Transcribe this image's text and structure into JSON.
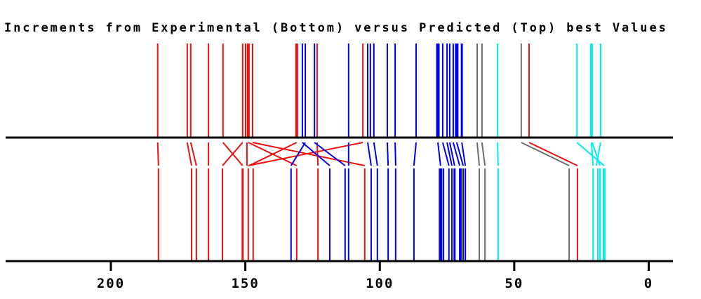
{
  "title": "Increments from Experimental (Bottom) versus Predicted (Top) best Values",
  "colors": {
    "red": "#ee1111",
    "blue": "#0000ee",
    "gray": "#6e6e6e",
    "cyan": "#00eeee",
    "axis": "#000000"
  },
  "chart_data": {
    "type": "line",
    "subtype": "stick-spectrum-comparison",
    "title": "Increments from Experimental (Bottom) versus Predicted (Top) best Values",
    "xlabel": "",
    "ylabel": "",
    "x_axis": {
      "ticks": [
        200,
        150,
        100,
        50,
        0
      ],
      "tick_labels": [
        "200",
        "150",
        "100",
        "50",
        "0"
      ],
      "xlim": [
        239.2,
        -9.8
      ],
      "reversed": true,
      "grid": false
    },
    "top_spectrum": {
      "name": "Predicted (Top) best values",
      "lines": [
        {
          "v": 182.6,
          "c": "red",
          "w": 2
        },
        {
          "v": 171.6,
          "c": "red",
          "w": 2
        },
        {
          "v": 170.3,
          "c": "red",
          "w": 2
        },
        {
          "v": 163.7,
          "c": "red",
          "w": 2
        },
        {
          "v": 158.3,
          "c": "red",
          "w": 2
        },
        {
          "v": 151.0,
          "c": "red",
          "w": 2
        },
        {
          "v": 149.9,
          "c": "red",
          "w": 2
        },
        {
          "v": 148.9,
          "c": "red",
          "w": 4
        },
        {
          "v": 147.3,
          "c": "red",
          "w": 2
        },
        {
          "v": 130.9,
          "c": "red",
          "w": 4
        },
        {
          "v": 128.8,
          "c": "blue",
          "w": 2
        },
        {
          "v": 127.7,
          "c": "blue",
          "w": 2
        },
        {
          "v": 124.3,
          "c": "blue",
          "w": 2
        },
        {
          "v": 123.3,
          "c": "red",
          "w": 2
        },
        {
          "v": 111.6,
          "c": "blue",
          "w": 2
        },
        {
          "v": 106.3,
          "c": "red",
          "w": 2
        },
        {
          "v": 104.5,
          "c": "blue",
          "w": 2
        },
        {
          "v": 103.5,
          "c": "blue",
          "w": 2
        },
        {
          "v": 102.2,
          "c": "blue",
          "w": 2
        },
        {
          "v": 97.2,
          "c": "blue",
          "w": 2
        },
        {
          "v": 94.3,
          "c": "blue",
          "w": 2
        },
        {
          "v": 86.5,
          "c": "blue",
          "w": 2
        },
        {
          "v": 78.4,
          "c": "blue",
          "w": 5
        },
        {
          "v": 76.6,
          "c": "blue",
          "w": 2
        },
        {
          "v": 75.0,
          "c": "blue",
          "w": 2
        },
        {
          "v": 74.0,
          "c": "blue",
          "w": 2
        },
        {
          "v": 72.7,
          "c": "blue",
          "w": 2
        },
        {
          "v": 71.4,
          "c": "blue",
          "w": 5
        },
        {
          "v": 69.5,
          "c": "blue",
          "w": 3
        },
        {
          "v": 63.8,
          "c": "gray",
          "w": 2
        },
        {
          "v": 62.0,
          "c": "gray",
          "w": 2
        },
        {
          "v": 56.2,
          "c": "cyan",
          "w": 2
        },
        {
          "v": 47.4,
          "c": "gray",
          "w": 2
        },
        {
          "v": 44.5,
          "c": "red",
          "w": 2
        },
        {
          "v": 26.7,
          "c": "cyan",
          "w": 2
        },
        {
          "v": 21.3,
          "c": "cyan",
          "w": 4
        },
        {
          "v": 17.9,
          "c": "cyan",
          "w": 2
        }
      ]
    },
    "bottom_spectrum": {
      "name": "Experimental (Bottom) best values",
      "lines": [
        {
          "v": 182.3,
          "c": "red",
          "w": 2
        },
        {
          "v": 170.0,
          "c": "red",
          "w": 2
        },
        {
          "v": 168.2,
          "c": "red",
          "w": 2
        },
        {
          "v": 163.7,
          "c": "red",
          "w": 2
        },
        {
          "v": 158.5,
          "c": "red",
          "w": 2
        },
        {
          "v": 151.0,
          "c": "red",
          "w": 3
        },
        {
          "v": 148.9,
          "c": "red",
          "w": 2
        },
        {
          "v": 147.1,
          "c": "red",
          "w": 2
        },
        {
          "v": 133.0,
          "c": "blue",
          "w": 2
        },
        {
          "v": 130.9,
          "c": "red",
          "w": 2
        },
        {
          "v": 123.0,
          "c": "red",
          "w": 2
        },
        {
          "v": 118.6,
          "c": "blue",
          "w": 2
        },
        {
          "v": 112.9,
          "c": "blue",
          "w": 2
        },
        {
          "v": 111.6,
          "c": "blue",
          "w": 2
        },
        {
          "v": 105.6,
          "c": "red",
          "w": 2
        },
        {
          "v": 103.2,
          "c": "blue",
          "w": 2
        },
        {
          "v": 100.9,
          "c": "blue",
          "w": 2
        },
        {
          "v": 96.9,
          "c": "blue",
          "w": 2
        },
        {
          "v": 94.1,
          "c": "blue",
          "w": 2
        },
        {
          "v": 87.3,
          "c": "blue",
          "w": 2
        },
        {
          "v": 77.4,
          "c": "blue",
          "w": 5
        },
        {
          "v": 76.3,
          "c": "blue",
          "w": 2
        },
        {
          "v": 74.3,
          "c": "blue",
          "w": 2
        },
        {
          "v": 73.2,
          "c": "blue",
          "w": 2
        },
        {
          "v": 72.2,
          "c": "blue",
          "w": 3
        },
        {
          "v": 70.3,
          "c": "blue",
          "w": 2
        },
        {
          "v": 69.8,
          "c": "blue",
          "w": 2
        },
        {
          "v": 69.0,
          "c": "blue",
          "w": 2
        },
        {
          "v": 68.2,
          "c": "blue",
          "w": 2
        },
        {
          "v": 63.0,
          "c": "gray",
          "w": 2
        },
        {
          "v": 60.9,
          "c": "gray",
          "w": 2
        },
        {
          "v": 56.0,
          "c": "cyan",
          "w": 2
        },
        {
          "v": 29.6,
          "c": "gray",
          "w": 2
        },
        {
          "v": 26.5,
          "c": "red",
          "w": 2
        },
        {
          "v": 20.7,
          "c": "cyan",
          "w": 2
        },
        {
          "v": 18.9,
          "c": "cyan",
          "w": 2
        },
        {
          "v": 18.1,
          "c": "cyan",
          "w": 2
        },
        {
          "v": 16.6,
          "c": "cyan",
          "w": 4
        }
      ]
    },
    "connectors": [
      {
        "t": 182.6,
        "b": 182.3,
        "c": "red"
      },
      {
        "t": 171.6,
        "b": 170.0,
        "c": "red"
      },
      {
        "t": 170.3,
        "b": 168.2,
        "c": "red"
      },
      {
        "t": 163.7,
        "b": 163.7,
        "c": "red"
      },
      {
        "t": 158.3,
        "b": 151.0,
        "c": "red"
      },
      {
        "t": 151.0,
        "b": 158.5,
        "c": "red"
      },
      {
        "t": 149.4,
        "b": 149.4,
        "c": "red"
      },
      {
        "t": 148.9,
        "b": 130.9,
        "c": "red"
      },
      {
        "t": 130.9,
        "b": 148.6,
        "c": "red"
      },
      {
        "t": 147.3,
        "b": 105.6,
        "c": "red"
      },
      {
        "t": 106.3,
        "b": 148.9,
        "c": "red"
      },
      {
        "t": 123.3,
        "b": 123.0,
        "c": "red"
      },
      {
        "t": 128.8,
        "b": 118.6,
        "c": "blue"
      },
      {
        "t": 127.7,
        "b": 133.0,
        "c": "blue"
      },
      {
        "t": 124.3,
        "b": 112.9,
        "c": "blue"
      },
      {
        "t": 111.6,
        "b": 111.6,
        "c": "blue"
      },
      {
        "t": 104.5,
        "b": 103.2,
        "c": "blue"
      },
      {
        "t": 102.2,
        "b": 100.9,
        "c": "blue"
      },
      {
        "t": 97.2,
        "b": 96.9,
        "c": "blue"
      },
      {
        "t": 94.3,
        "b": 94.1,
        "c": "blue"
      },
      {
        "t": 86.5,
        "b": 87.3,
        "c": "blue"
      },
      {
        "t": 78.4,
        "b": 77.4,
        "c": "blue"
      },
      {
        "t": 76.6,
        "b": 74.3,
        "c": "blue"
      },
      {
        "t": 75.0,
        "b": 73.2,
        "c": "blue"
      },
      {
        "t": 74.0,
        "b": 72.2,
        "c": "blue"
      },
      {
        "t": 72.7,
        "b": 70.3,
        "c": "blue"
      },
      {
        "t": 71.4,
        "b": 69.0,
        "c": "blue"
      },
      {
        "t": 69.5,
        "b": 68.2,
        "c": "blue"
      },
      {
        "t": 63.8,
        "b": 63.0,
        "c": "gray"
      },
      {
        "t": 62.0,
        "b": 60.9,
        "c": "gray"
      },
      {
        "t": 47.4,
        "b": 29.6,
        "c": "gray"
      },
      {
        "t": 44.5,
        "b": 26.5,
        "c": "red"
      },
      {
        "t": 56.2,
        "b": 56.0,
        "c": "cyan"
      },
      {
        "t": 26.7,
        "b": 16.6,
        "c": "cyan"
      },
      {
        "t": 21.3,
        "b": 20.7,
        "c": "cyan"
      },
      {
        "t": 21.0,
        "b": 18.1,
        "c": "cyan"
      },
      {
        "t": 17.9,
        "b": 19.5,
        "c": "cyan"
      }
    ]
  }
}
